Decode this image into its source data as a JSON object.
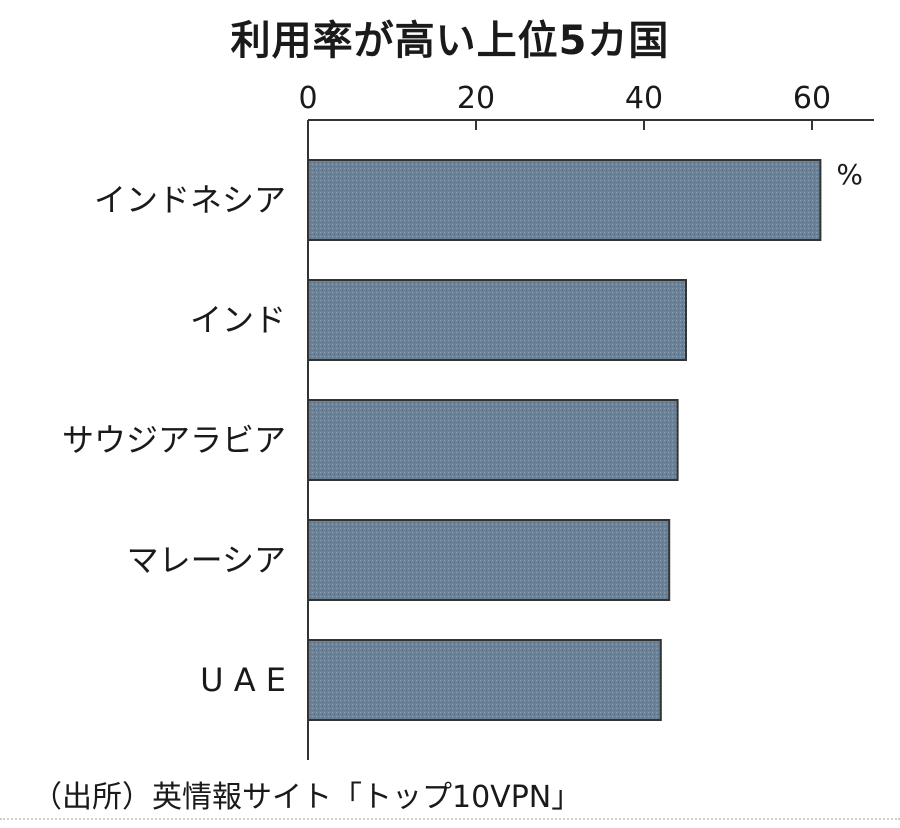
{
  "chart_data": {
    "type": "bar",
    "orientation": "horizontal",
    "title": "利用率が高い上位5カ国",
    "categories": [
      "インドネシア",
      "インド",
      "サウジアラビア",
      "マレーシア",
      "U A E"
    ],
    "values": [
      61,
      45,
      44,
      43,
      42
    ],
    "xlim": [
      0,
      67
    ],
    "xticks": [
      0,
      20,
      40,
      60
    ],
    "unit": "%",
    "grid": false,
    "bar_color": "#6a8399",
    "bar_border_color": "#333333",
    "source": "（出所）英情報サイト「トップ10VPN」"
  }
}
